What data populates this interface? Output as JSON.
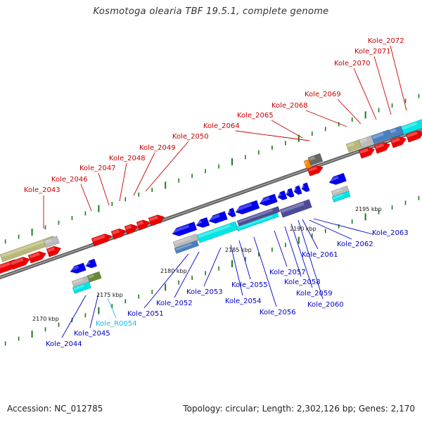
{
  "title": "Kosmotoga olearia TBF 19.5.1, complete genome",
  "footer": {
    "accession": "Accession: NC_012785",
    "summary": "Topology: circular; Length: 2,302,126 bp; Genes: 2,170"
  },
  "colors": {
    "top_label": "#cc0000",
    "bottom_label": "#0000cc",
    "rna_label": "#1fb6e6",
    "gene_red": "#ee0000",
    "gene_blue": "#0000ee",
    "gene_cyan": "#00e5e5",
    "gene_olive": "#b8b878",
    "gene_grey": "#bbbbbb",
    "gene_navy": "#4b4b9a",
    "tick_green": "#1a7a1a",
    "axis": "#888888"
  },
  "scale": {
    "ticks": [
      "2170 kbp",
      "2175 kbp",
      "2180 kbp",
      "2185 kbp",
      "2190 kbp",
      "2195 kbp"
    ]
  },
  "top_labels": [
    "Kole_2043",
    "Kole_2046",
    "Kole_2047",
    "Kole_2048",
    "Kole_2049",
    "Kole_2050",
    "Kole_2064",
    "Kole_2065",
    "Kole_2068",
    "Kole_2069",
    "Kole_2070",
    "Kole_2071",
    "Kole_2072"
  ],
  "bottom_labels": [
    "Kole_2044",
    "Kole_2045",
    "Kole_R0054",
    "Kole_2051",
    "Kole_2052",
    "Kole_2053",
    "Kole_2054",
    "Kole_2055",
    "Kole_2056",
    "Kole_2057",
    "Kole_2058",
    "Kole_2059",
    "Kole_2060",
    "Kole_2061",
    "Kole_2062",
    "Kole_2063"
  ]
}
